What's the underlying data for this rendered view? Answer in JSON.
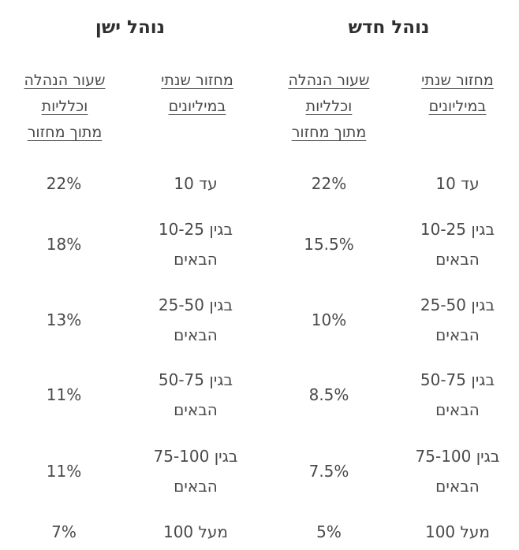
{
  "groups": {
    "new": {
      "title": "נוהל חדש"
    },
    "old": {
      "title": "נוהל ישן"
    }
  },
  "headers": {
    "turnover": [
      "מחזור שנתי",
      "במיליונים"
    ],
    "rate": [
      "שעור הנהלה",
      "וכלליות",
      "מתוך מחזור"
    ]
  },
  "rows": [
    {
      "turnover": [
        "עד 10"
      ],
      "new_rate": "22%",
      "old_rate": "22%"
    },
    {
      "turnover": [
        "בגין 10-25",
        "הבאים"
      ],
      "new_rate": "15.5%",
      "old_rate": "18%"
    },
    {
      "turnover": [
        "בגין 25-50",
        "הבאים"
      ],
      "new_rate": "10%",
      "old_rate": "13%"
    },
    {
      "turnover": [
        "בגין 50-75",
        "הבאים"
      ],
      "new_rate": "8.5%",
      "old_rate": "11%"
    },
    {
      "turnover": [
        "בגין 75-100",
        "הבאים"
      ],
      "new_rate": "7.5%",
      "old_rate": "11%"
    },
    {
      "turnover": [
        "מעל 100"
      ],
      "new_rate": "5%",
      "old_rate": "7%"
    }
  ]
}
